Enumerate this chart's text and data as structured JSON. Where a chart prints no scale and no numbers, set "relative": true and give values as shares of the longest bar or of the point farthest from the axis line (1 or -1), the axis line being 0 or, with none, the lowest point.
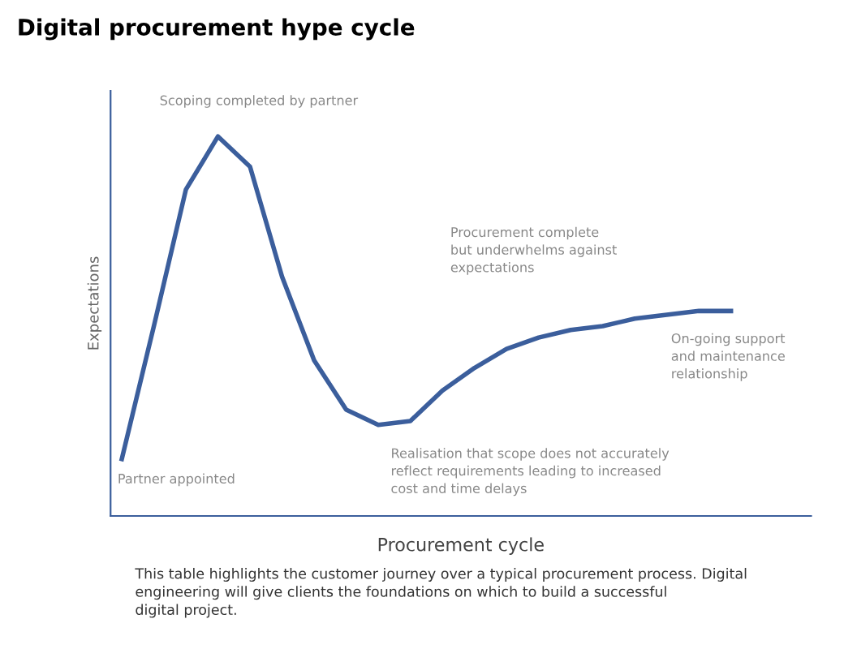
{
  "chart_data": {
    "type": "line",
    "title": "Digital procurement hype cycle",
    "xlabel": "Procurement cycle",
    "ylabel": "Expectations",
    "relative": true,
    "categories": [
      null,
      null,
      null,
      null,
      null,
      null,
      null,
      null,
      null,
      null,
      null,
      null,
      null,
      null,
      null,
      null,
      null,
      null,
      null,
      null
    ],
    "series": [
      {
        "color": "#3b5e9c",
        "values": [
          0.15,
          0.5,
          0.86,
          1,
          0.92,
          0.63,
          0.41,
          0.28,
          0.24,
          0.25,
          0.33,
          0.39,
          0.44,
          0.47,
          0.49,
          0.5,
          0.52,
          0.53,
          0.54,
          0.54
        ]
      }
    ],
    "annotations": [
      "Scoping completed by partner",
      "Procurement complete\nbut underwhelms against\nexpectations",
      "On-going support\nand maintenance\nrelationship",
      "Partner appointed",
      "Realisation that scope does not accurately\nreflect requirements leading to increased\ncost and time delays",
      "This table highlights the customer journey over a typical procurement process. Digital\nengineering will give clients the foundations on which to build a successful\ndigital project."
    ],
    "grid": false,
    "legend": false,
    "marker": "none",
    "line_style": "solid"
  }
}
